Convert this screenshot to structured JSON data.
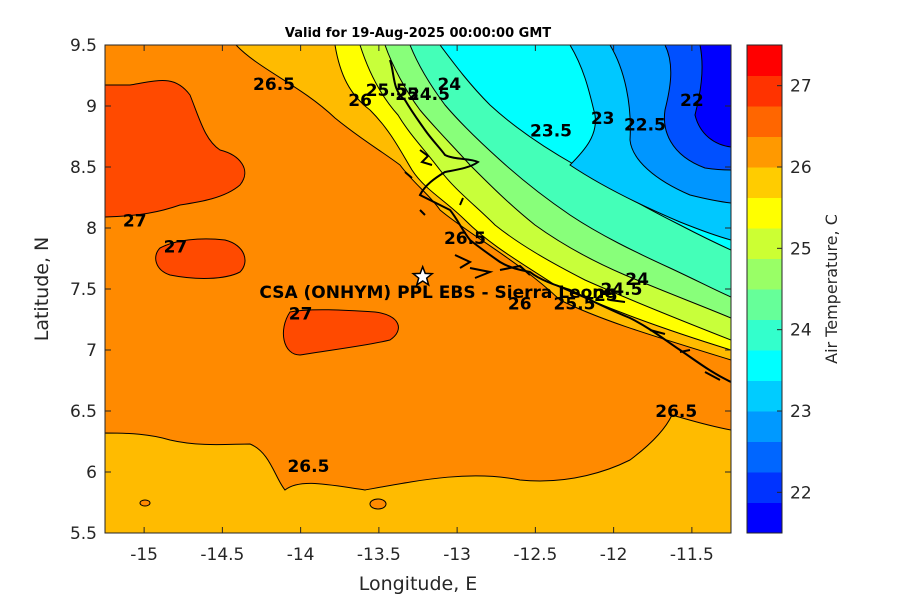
{
  "title": "Valid for 19-Aug-2025 00:00:00 GMT",
  "map": {
    "xlabel": "Longitude, E",
    "ylabel": "Latitude, N",
    "xlim": [
      -15.25,
      -11.25
    ],
    "ylim": [
      5.5,
      9.5
    ],
    "xticks": [
      "-15",
      "-14.5",
      "-14",
      "-13.5",
      "-13",
      "-12.5",
      "-12",
      "-11.5"
    ],
    "yticks": [
      "5.5",
      "6",
      "6.5",
      "7",
      "7.5",
      "8",
      "8.5",
      "9",
      "9.5"
    ],
    "site": {
      "name": "CSA (ONHYM) PPL EBS - Sierra Leone",
      "lon": -13.22,
      "lat": 7.6,
      "marker": "star-icon"
    },
    "contour_labels": [
      {
        "text": "26.5",
        "lon": -14.17,
        "lat": 9.18
      },
      {
        "text": "26",
        "lon": -13.62,
        "lat": 9.05
      },
      {
        "text": "25.5",
        "lon": -13.45,
        "lat": 9.13
      },
      {
        "text": "25",
        "lon": -13.32,
        "lat": 9.1
      },
      {
        "text": "24.5",
        "lon": -13.18,
        "lat": 9.1
      },
      {
        "text": "24",
        "lon": -13.05,
        "lat": 9.18
      },
      {
        "text": "23.5",
        "lon": -12.4,
        "lat": 8.8
      },
      {
        "text": "23",
        "lon": -12.07,
        "lat": 8.9
      },
      {
        "text": "22.5",
        "lon": -11.8,
        "lat": 8.85
      },
      {
        "text": "22",
        "lon": -11.5,
        "lat": 9.05
      },
      {
        "text": "27",
        "lon": -15.06,
        "lat": 8.06
      },
      {
        "text": "27",
        "lon": -14.8,
        "lat": 7.85
      },
      {
        "text": "27",
        "lon": -14.0,
        "lat": 7.3
      },
      {
        "text": "26.5",
        "lon": -12.95,
        "lat": 7.92
      },
      {
        "text": "26",
        "lon": -12.6,
        "lat": 7.38
      },
      {
        "text": "25.5",
        "lon": -12.25,
        "lat": 7.38
      },
      {
        "text": "25",
        "lon": -12.05,
        "lat": 7.45
      },
      {
        "text": "24.5",
        "lon": -11.95,
        "lat": 7.5
      },
      {
        "text": "24",
        "lon": -11.85,
        "lat": 7.58
      },
      {
        "text": "26.5",
        "lon": -11.6,
        "lat": 6.5
      },
      {
        "text": "26.5",
        "lon": -13.95,
        "lat": 6.05
      }
    ]
  },
  "colorbar": {
    "label": "Air Temperature, C",
    "min": 21.5,
    "max": 27.5,
    "step": 0.25,
    "ticks": [
      "22",
      "23",
      "24",
      "25",
      "26",
      "27"
    ],
    "colors": [
      "#0000ff",
      "#0033ff",
      "#0066ff",
      "#0099ff",
      "#00ccff",
      "#00ffff",
      "#33ffcc",
      "#66ff99",
      "#99ff66",
      "#ccff33",
      "#ffff00",
      "#ffcc00",
      "#ff9900",
      "#ff6600",
      "#ff3300",
      "#ff0000"
    ]
  },
  "colors": {
    "warm_27": "#ff4a00",
    "sea_26_5": "#ff8a00",
    "sea_26": "#ffbb00",
    "yellow_25_5": "#ffff00",
    "green_25": "#c8ff3a",
    "green_24_5": "#88ff7a",
    "teal_24": "#44ffb8",
    "cyan_23_5": "#00ffff",
    "sky_23": "#00c8ff",
    "blue_22_5": "#0096ff",
    "blue_22": "#0050ff",
    "deep_21_5": "#0000ff"
  }
}
